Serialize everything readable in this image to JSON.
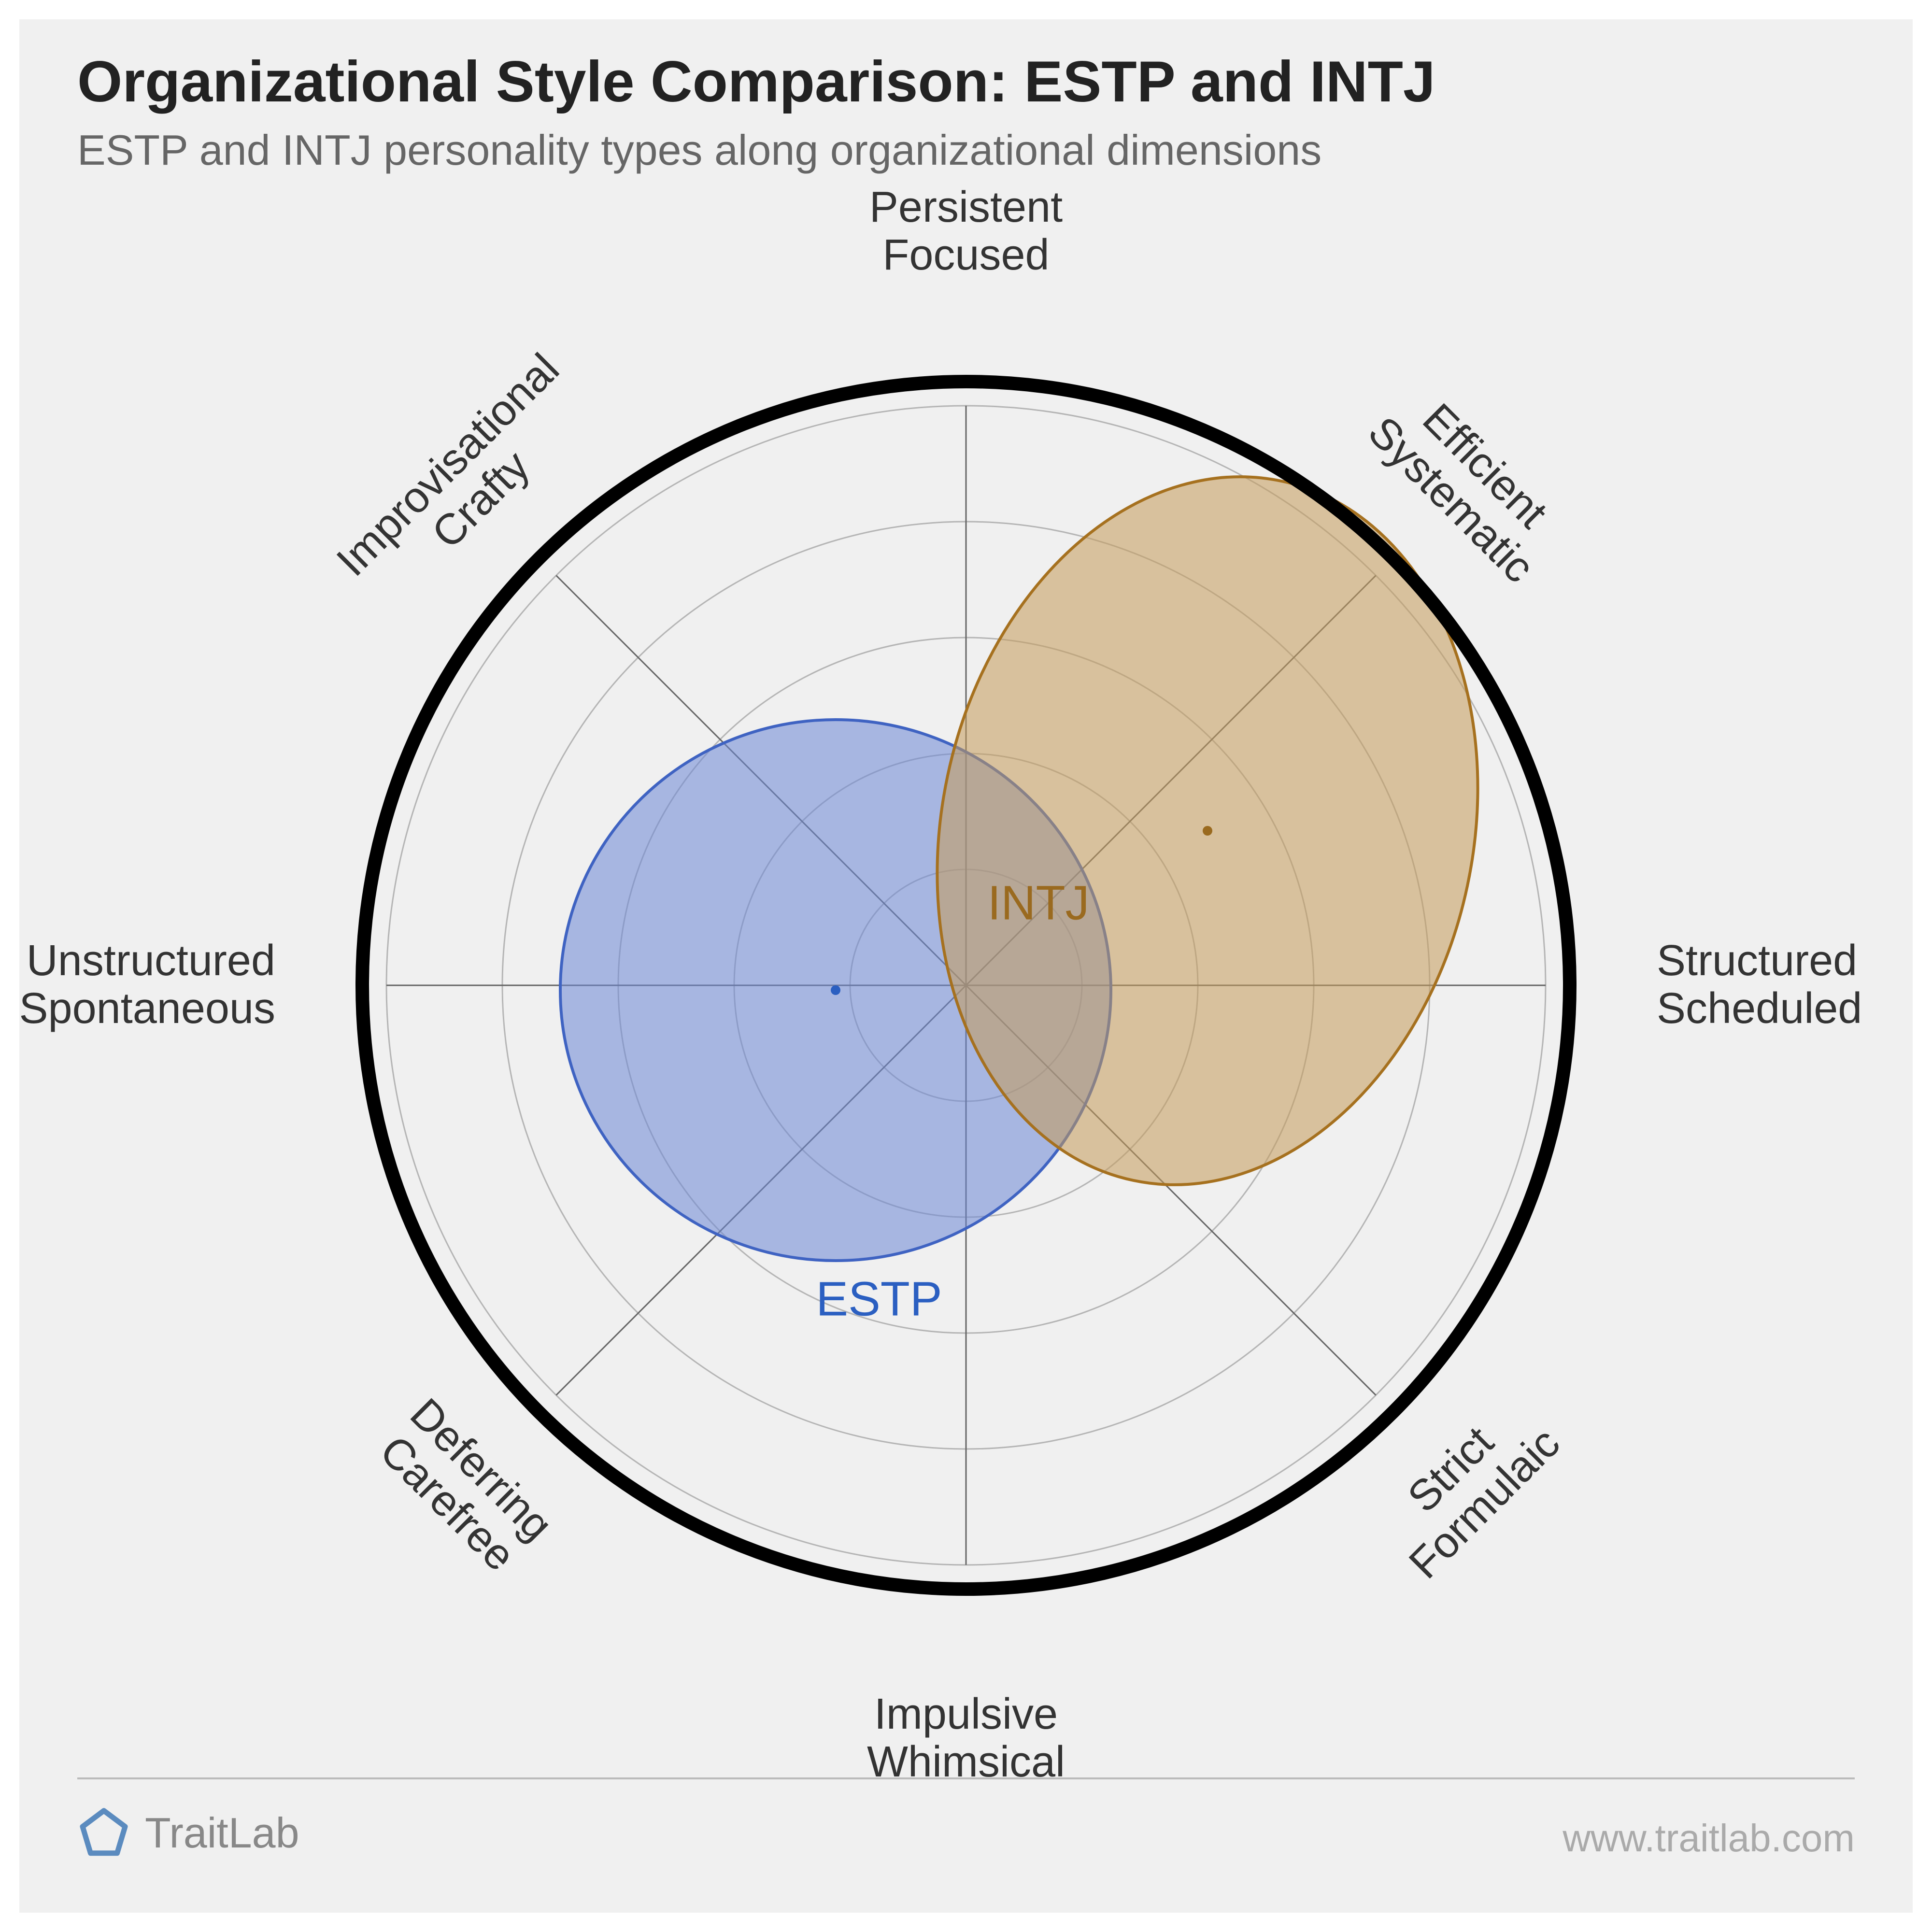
{
  "header": {
    "title": "Organizational Style Comparison: ESTP and INTJ",
    "subtitle": "ESTP and INTJ personality types along organizational dimensions"
  },
  "footer": {
    "brand": "TraitLab",
    "url": "www.traitlab.com",
    "logo_color": "#5b8bbf",
    "line_color": "#bbbbbb",
    "text_color": "#999999"
  },
  "chart": {
    "type": "radar-ellipse",
    "background_color": "#f0f0f0",
    "outer_ring": {
      "radius": 1250,
      "stroke": "#000000",
      "stroke_width": 28
    },
    "grid_rings": {
      "count": 5,
      "max_radius": 1200,
      "stroke": "#b5b5b5",
      "stroke_width": 3
    },
    "spokes": {
      "count": 8,
      "stroke": "#666666",
      "stroke_width": 3
    },
    "axes": [
      {
        "angle_deg": 90,
        "label_line1": "Persistent",
        "label_line2": "Focused"
      },
      {
        "angle_deg": 45,
        "label_line1": "Efficient",
        "label_line2": "Systematic"
      },
      {
        "angle_deg": 0,
        "label_line1": "Structured",
        "label_line2": "Scheduled"
      },
      {
        "angle_deg": -45,
        "label_line1": "Strict",
        "label_line2": "Formulaic"
      },
      {
        "angle_deg": -90,
        "label_line1": "Impulsive",
        "label_line2": "Whimsical"
      },
      {
        "angle_deg": -135,
        "label_line1": "Deferring",
        "label_line2": "Carefree"
      },
      {
        "angle_deg": 180,
        "label_line1": "Unstructured",
        "label_line2": "Spontaneous"
      },
      {
        "angle_deg": 135,
        "label_line1": "Improvisational",
        "label_line2": "Crafty"
      }
    ],
    "series": [
      {
        "name": "ESTP",
        "label": "ESTP",
        "label_color": "#2b5fc1",
        "fill": "#6b87d6",
        "fill_opacity": 0.55,
        "stroke": "#3f63c2",
        "stroke_width": 6,
        "center_x": -270,
        "center_y": -10,
        "rx": 570,
        "ry": 560,
        "rotation_deg": 0,
        "dot_color": "#2b5fc1",
        "label_dx": -180,
        "label_dy": -650
      },
      {
        "name": "INTJ",
        "label": "INTJ",
        "label_color": "#9a6a1f",
        "fill": "#c49a5a",
        "fill_opacity": 0.55,
        "stroke": "#a6711f",
        "stroke_width": 6,
        "center_x": 500,
        "center_y": 320,
        "rx": 550,
        "ry": 740,
        "rotation_deg": 12,
        "dot_color": "#9a6a1f",
        "label_dx": 150,
        "label_dy": 170
      }
    ],
    "axis_label_fontsize": 90,
    "axis_label_color": "#333333",
    "series_label_fontsize": 100
  }
}
